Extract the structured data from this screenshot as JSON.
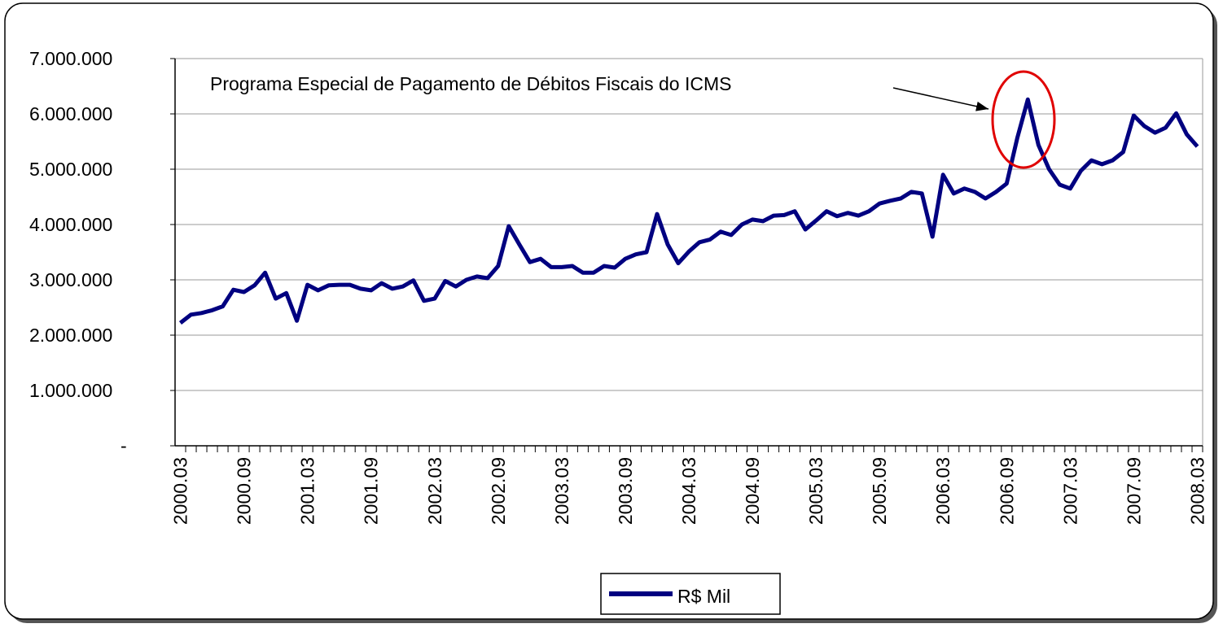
{
  "chart_data": {
    "type": "line",
    "annotation": "Programa Especial de Pagamento de Débitos Fiscais do ICMS",
    "categories": [
      "2000.03",
      null,
      null,
      null,
      null,
      null,
      "2000.09",
      null,
      null,
      null,
      null,
      null,
      "2001.03",
      null,
      null,
      null,
      null,
      null,
      "2001.09",
      null,
      null,
      null,
      null,
      null,
      "2002.03",
      null,
      null,
      null,
      null,
      null,
      "2002.09",
      null,
      null,
      null,
      null,
      null,
      "2003.03",
      null,
      null,
      null,
      null,
      null,
      "2003.09",
      null,
      null,
      null,
      null,
      null,
      "2004.03",
      null,
      null,
      null,
      null,
      null,
      "2004.09",
      null,
      null,
      null,
      null,
      null,
      "2005.03",
      null,
      null,
      null,
      null,
      null,
      "2005.09",
      null,
      null,
      null,
      null,
      null,
      "2006.03",
      null,
      null,
      null,
      null,
      null,
      "2006.09",
      null,
      null,
      null,
      null,
      null,
      "2007.03",
      null,
      null,
      null,
      null,
      null,
      "2007.09",
      null,
      null,
      null,
      null,
      null,
      "2008.03"
    ],
    "series": [
      {
        "name": "R$ Mil",
        "color": "#000080",
        "values": [
          2220000,
          2370000,
          2400000,
          2450000,
          2520000,
          2820000,
          2780000,
          2900000,
          3130000,
          2660000,
          2760000,
          2260000,
          2910000,
          2810000,
          2900000,
          2910000,
          2910000,
          2840000,
          2810000,
          2940000,
          2840000,
          2880000,
          2990000,
          2620000,
          2660000,
          2980000,
          2880000,
          3000000,
          3060000,
          3030000,
          3250000,
          3970000,
          3640000,
          3320000,
          3380000,
          3230000,
          3230000,
          3250000,
          3130000,
          3130000,
          3250000,
          3220000,
          3380000,
          3460000,
          3500000,
          4190000,
          3640000,
          3300000,
          3510000,
          3680000,
          3730000,
          3870000,
          3810000,
          4000000,
          4090000,
          4060000,
          4160000,
          4170000,
          4240000,
          3910000,
          4070000,
          4240000,
          4150000,
          4210000,
          4160000,
          4240000,
          4380000,
          4430000,
          4470000,
          4590000,
          4560000,
          3780000,
          4900000,
          4560000,
          4650000,
          4590000,
          4470000,
          4590000,
          4740000,
          5560000,
          6260000,
          5440000,
          5000000,
          4720000,
          4650000,
          4970000,
          5160000,
          5090000,
          5160000,
          5310000,
          5970000,
          5780000,
          5660000,
          5750000,
          6010000,
          5630000,
          5410000
        ]
      }
    ],
    "ylim": [
      0,
      7000000
    ],
    "yticks": [
      {
        "value": 0,
        "label": "-"
      },
      {
        "value": 1000000,
        "label": "1.000.000"
      },
      {
        "value": 2000000,
        "label": "2.000.000"
      },
      {
        "value": 3000000,
        "label": "3.000.000"
      },
      {
        "value": 4000000,
        "label": "4.000.000"
      },
      {
        "value": 5000000,
        "label": "5.000.000"
      },
      {
        "value": 6000000,
        "label": "6.000.000"
      },
      {
        "value": 7000000,
        "label": "7.000.000"
      }
    ],
    "grid": true,
    "legend": "bottom"
  }
}
